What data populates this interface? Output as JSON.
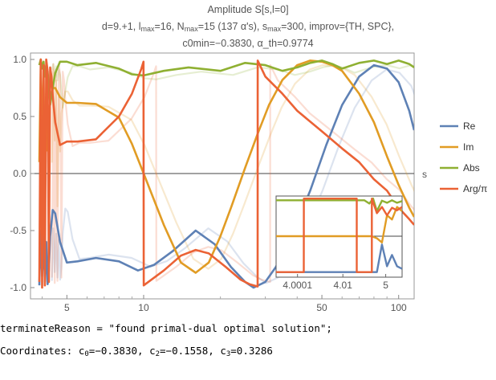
{
  "title": {
    "line1": "Amplitude S[s,l=0]",
    "line2": "d=9.+1, l_max=16, N_max=15 (137 α's), s_max=300, improv={TH, SPC},",
    "line3": "c0min=−0.3830, α_th=0.9774"
  },
  "output": {
    "terminate_line": "terminateReason = \"found primal-dual optimal solution\";",
    "coords_prefix": "Coordinates: ",
    "c0": "c0=−0.3830",
    "c2": "c2=−0.1558",
    "c3": "c3=0.3286"
  },
  "chart_data": {
    "type": "line",
    "xscale": "log",
    "xlabel": "s",
    "xlim": [
      3.6,
      115
    ],
    "ylim": [
      -1.05,
      1.05
    ],
    "x_ticks": [
      5,
      10,
      50,
      100
    ],
    "x_tick_labels": [
      "5",
      "10",
      "50",
      "100"
    ],
    "y_ticks": [
      -1.0,
      -0.5,
      0.0,
      0.5,
      1.0
    ],
    "y_tick_labels": [
      "-1.0",
      "-0.5",
      "0.0",
      "0.5",
      "1.0"
    ],
    "legend_placement": "right",
    "series": [
      {
        "name": "Re",
        "color": "#5E81B5",
        "x": [
          3.9,
          3.95,
          4.0,
          4.05,
          4.1,
          4.15,
          4.2,
          4.25,
          4.3,
          4.4,
          4.5,
          4.7,
          5.0,
          5.5,
          6.5,
          8.0,
          9.5,
          11.0,
          13.0,
          16.0,
          19.0,
          22.0,
          25.0,
          27.0,
          30.0,
          33.0,
          38.0,
          45.0,
          52.0,
          60.0,
          70.0,
          80.0,
          90.0,
          100.0,
          110.0,
          115.0
        ],
        "y": [
          -0.98,
          -0.5,
          -0.9,
          -0.55,
          -0.95,
          -0.6,
          -0.97,
          -0.85,
          -0.55,
          -0.32,
          -0.35,
          -0.6,
          -0.78,
          -0.77,
          -0.74,
          -0.77,
          -0.85,
          -0.8,
          -0.68,
          -0.5,
          -0.62,
          -0.82,
          -0.95,
          -1.0,
          -0.95,
          -0.82,
          -0.55,
          -0.15,
          0.25,
          0.6,
          0.85,
          0.95,
          0.92,
          0.8,
          0.55,
          0.38
        ]
      },
      {
        "name": "Im",
        "color": "#E19C24",
        "x": [
          3.9,
          3.95,
          4.0,
          4.05,
          4.1,
          4.15,
          4.2,
          4.25,
          4.3,
          4.4,
          4.5,
          4.7,
          5.0,
          5.5,
          6.5,
          8.0,
          9.0,
          10.0,
          12.0,
          14.0,
          16.0,
          18.0,
          20.0,
          22.0,
          25.0,
          28.0,
          31.0,
          35.0,
          40.0,
          45.0,
          50.0,
          55.0,
          60.0,
          70.0,
          80.0,
          90.0,
          100.0,
          110.0,
          115.0
        ],
        "y": [
          0.1,
          0.95,
          0.3,
          0.85,
          -0.3,
          0.7,
          0.2,
          0.55,
          0.62,
          0.75,
          0.75,
          0.67,
          0.62,
          0.62,
          0.61,
          0.49,
          0.26,
          0.0,
          -0.45,
          -0.78,
          -0.87,
          -0.78,
          -0.55,
          -0.3,
          0.05,
          0.35,
          0.6,
          0.82,
          0.95,
          0.99,
          0.98,
          0.95,
          0.9,
          0.7,
          0.45,
          0.15,
          -0.1,
          -0.3,
          -0.38
        ]
      },
      {
        "name": "Abs",
        "color": "#8FB032",
        "x": [
          3.9,
          3.95,
          4.0,
          4.05,
          4.1,
          4.15,
          4.2,
          4.25,
          4.3,
          4.4,
          4.5,
          4.7,
          5.0,
          5.5,
          6.5,
          8.0,
          9.0,
          10.0,
          12.0,
          15.0,
          20.0,
          25.0,
          30.0,
          35.0,
          40.0,
          45.0,
          50.0,
          55.0,
          60.0,
          70.0,
          80.0,
          90.0,
          100.0,
          110.0,
          115.0
        ],
        "y": [
          0.95,
          1.0,
          0.92,
          0.98,
          0.85,
          0.95,
          0.9,
          0.75,
          0.6,
          0.75,
          0.88,
          0.98,
          0.98,
          0.95,
          0.97,
          0.92,
          0.87,
          0.86,
          0.9,
          0.93,
          0.9,
          0.97,
          0.95,
          0.9,
          0.93,
          0.97,
          0.99,
          0.96,
          0.92,
          0.97,
          0.99,
          0.96,
          0.99,
          0.96,
          0.93
        ]
      },
      {
        "name": "Arg/π",
        "color": "#EB6235",
        "x": [
          3.9,
          3.95,
          4.0,
          4.05,
          4.1,
          4.15,
          4.2,
          4.25,
          4.3,
          4.35,
          4.4,
          4.5,
          4.7,
          5.0,
          5.5,
          6.5,
          8.0,
          9.0,
          9.8,
          9.99,
          10.01,
          12.0,
          14.0,
          16.0,
          18.0,
          21.0,
          24.0,
          26.0,
          27.99,
          28.01,
          30.0,
          35.0,
          40.0,
          50.0,
          60.0,
          70.0,
          80.0,
          90.0,
          100.0,
          110.0,
          115.0
        ],
        "y": [
          -0.95,
          1.0,
          -1.0,
          0.95,
          -0.98,
          1.0,
          0.9,
          -0.95,
          0.93,
          0.85,
          0.68,
          0.45,
          0.25,
          0.28,
          0.28,
          0.3,
          0.5,
          0.7,
          0.92,
          0.98,
          -0.98,
          -0.85,
          -0.72,
          -0.67,
          -0.7,
          -0.82,
          -0.93,
          -0.97,
          -0.99,
          0.99,
          0.85,
          0.7,
          0.55,
          0.37,
          0.22,
          0.1,
          -0.05,
          -0.15,
          -0.3,
          -0.4,
          -0.45
        ]
      }
    ],
    "inset": {
      "x_tick_labels": [
        "4.0001",
        "4.01",
        "5"
      ],
      "xscale": "log(s-4)",
      "series": [
        {
          "name": "Re",
          "color": "#5E81B5",
          "x": [
            0.0,
            0.08,
            0.16,
            0.24,
            0.32,
            0.4,
            0.48,
            0.56,
            0.64,
            0.7,
            0.76,
            0.8,
            0.84,
            0.88,
            0.92,
            0.96,
            1.0
          ],
          "y": [
            -0.86,
            -0.86,
            -0.86,
            -0.86,
            -0.86,
            -0.86,
            -0.86,
            -0.86,
            -0.86,
            -0.86,
            -0.86,
            -0.86,
            -0.2,
            -0.72,
            -0.45,
            -0.72,
            -0.78
          ]
        },
        {
          "name": "Im",
          "color": "#E19C24",
          "x": [
            0.0,
            0.08,
            0.16,
            0.24,
            0.32,
            0.4,
            0.48,
            0.56,
            0.64,
            0.7,
            0.76,
            0.8,
            0.84,
            0.88,
            0.92,
            0.96,
            1.0
          ],
          "y": [
            0.0,
            0.0,
            0.0,
            0.0,
            0.0,
            0.0,
            0.0,
            0.0,
            0.0,
            0.0,
            0.0,
            -0.05,
            -0.15,
            0.5,
            0.4,
            0.7,
            0.6
          ]
        },
        {
          "name": "Abs",
          "color": "#8FB032",
          "x": [
            0.0,
            0.08,
            0.16,
            0.24,
            0.32,
            0.4,
            0.48,
            0.56,
            0.64,
            0.7,
            0.74,
            0.77,
            0.8,
            0.84,
            0.88,
            0.92,
            0.96,
            1.0
          ],
          "y": [
            0.86,
            0.86,
            0.86,
            0.86,
            0.86,
            0.86,
            0.86,
            0.86,
            0.86,
            0.86,
            0.78,
            0.9,
            0.6,
            0.85,
            0.8,
            0.86,
            0.8,
            0.84
          ]
        },
        {
          "name": "Arg/π",
          "color": "#EB6235",
          "x": [
            0.0,
            0.22,
            0.2201,
            0.3,
            0.3001,
            0.55,
            0.5501,
            0.64,
            0.6401,
            0.76,
            0.7601,
            0.8,
            0.84,
            0.88,
            0.92,
            0.96,
            1.0
          ],
          "y": [
            -0.86,
            -0.86,
            0.9,
            0.9,
            0.9,
            0.9,
            0.9,
            0.9,
            -0.86,
            -0.86,
            0.9,
            0.55,
            0.7,
            0.5,
            0.68,
            0.62,
            0.7
          ]
        }
      ]
    }
  }
}
